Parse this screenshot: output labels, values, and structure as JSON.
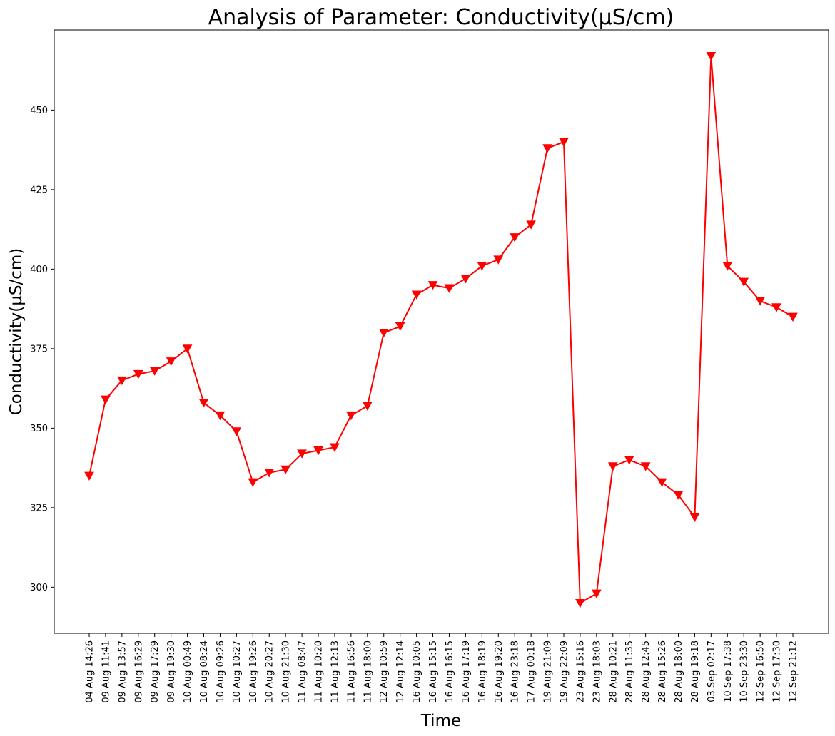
{
  "chart_data": {
    "type": "line",
    "title": "Analysis of Parameter: Conductivity(µS/cm)",
    "xlabel": "Time",
    "ylabel": "Conductivity(µS/cm)",
    "ylim": [
      285.5,
      475.2
    ],
    "yticks": [
      300,
      325,
      350,
      375,
      400,
      425,
      450
    ],
    "grid": false,
    "marker": "triangle-down",
    "colors": {
      "line": "#ff0000",
      "marker": "#ff0000"
    },
    "categories": [
      "04 Aug 14:26",
      "09 Aug 11:41",
      "09 Aug 13:57",
      "09 Aug 16:29",
      "09 Aug 17:29",
      "09 Aug 19:30",
      "10 Aug 00:49",
      "10 Aug 08:24",
      "10 Aug 09:26",
      "10 Aug 10:27",
      "10 Aug 19:26",
      "10 Aug 20:27",
      "10 Aug 21:30",
      "11 Aug 08:47",
      "11 Aug 10:20",
      "11 Aug 12:13",
      "11 Aug 16:56",
      "11 Aug 18:00",
      "12 Aug 10:59",
      "12 Aug 12:14",
      "16 Aug 10:05",
      "16 Aug 15:15",
      "16 Aug 16:15",
      "16 Aug 17:19",
      "16 Aug 18:19",
      "16 Aug 19:20",
      "16 Aug 23:18",
      "17 Aug 00:18",
      "19 Aug 21:09",
      "19 Aug 22:09",
      "23 Aug 15:16",
      "23 Aug 18:03",
      "28 Aug 10:21",
      "28 Aug 11:35",
      "28 Aug 12:45",
      "28 Aug 15:26",
      "28 Aug 18:00",
      "28 Aug 19:18",
      "03 Sep 02:17",
      "10 Sep 17:38",
      "10 Sep 23:30",
      "12 Sep 16:50",
      "12 Sep 17:30",
      "12 Sep 21:12"
    ],
    "values": [
      335,
      359,
      365,
      367,
      368,
      371,
      375,
      358,
      354,
      349,
      333,
      336,
      337,
      342,
      343,
      344,
      354,
      357,
      380,
      382,
      392,
      395,
      394,
      397,
      401,
      403,
      410,
      414,
      438,
      440,
      295,
      298,
      338,
      340,
      338,
      333,
      329,
      322,
      467,
      401,
      396,
      390,
      388,
      385
    ]
  }
}
